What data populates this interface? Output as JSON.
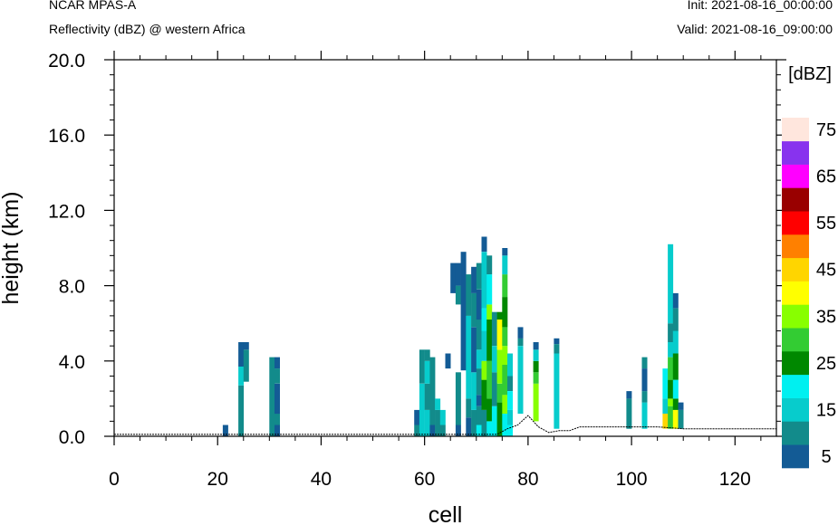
{
  "header": {
    "model": "NCAR MPAS-A",
    "subtitle": "Reflectivity (dBZ) @ western Africa",
    "init": "Init: 2021-08-16_00:00:00",
    "valid": "Valid: 2021-08-16_09:00:00"
  },
  "chart_data": {
    "type": "heatmap",
    "xlabel": "cell",
    "ylabel": "height (km)",
    "xlim": [
      0,
      128
    ],
    "ylim": [
      0,
      20
    ],
    "xticks": [
      "0",
      "20",
      "40",
      "60",
      "80",
      "100",
      "120"
    ],
    "yticks": [
      "0.0",
      "4.0",
      "8.0",
      "12.0",
      "16.0",
      "20.0"
    ],
    "colorbar": {
      "title": "[dBZ]",
      "labels": [
        "5",
        "15",
        "25",
        "35",
        "45",
        "55",
        "65",
        "75"
      ],
      "levels": [
        5,
        10,
        15,
        20,
        25,
        30,
        35,
        40,
        45,
        50,
        55,
        60,
        65,
        70,
        75
      ],
      "colors": [
        "#135b95",
        "#128b8b",
        "#07cccc",
        "#00f0f0",
        "#008800",
        "#33cc33",
        "#88ff00",
        "#ffff00",
        "#ffd500",
        "#ff8000",
        "#ff0000",
        "#990000",
        "#ff00ff",
        "#8833ee",
        "#ffe6dd"
      ]
    },
    "columns": [
      {
        "x": 21,
        "cells": [
          [
            0,
            0.6,
            5
          ]
        ]
      },
      {
        "x": 24,
        "cells": [
          [
            0,
            2.7,
            10
          ],
          [
            2.7,
            3.7,
            15
          ],
          [
            3.7,
            5.0,
            5
          ]
        ]
      },
      {
        "x": 25,
        "cells": [
          [
            2.9,
            4.6,
            10
          ],
          [
            4.6,
            5.0,
            5
          ]
        ]
      },
      {
        "x": 30,
        "cells": [
          [
            0,
            4.2,
            10
          ]
        ]
      },
      {
        "x": 31,
        "cells": [
          [
            0,
            0.6,
            5
          ],
          [
            0.6,
            1.2,
            10
          ],
          [
            1.2,
            2.8,
            5
          ],
          [
            2.8,
            3.6,
            10
          ],
          [
            3.6,
            4.2,
            5
          ]
        ]
      },
      {
        "x": 58,
        "cells": [
          [
            0,
            0.6,
            10
          ],
          [
            0.6,
            1.4,
            5
          ]
        ]
      },
      {
        "x": 59,
        "cells": [
          [
            0,
            2.8,
            15
          ],
          [
            2.8,
            4.6,
            10
          ]
        ]
      },
      {
        "x": 60,
        "cells": [
          [
            0,
            1.4,
            15
          ],
          [
            1.4,
            2.8,
            10
          ],
          [
            2.8,
            4.0,
            15
          ],
          [
            4.0,
            4.6,
            10
          ]
        ]
      },
      {
        "x": 61,
        "cells": [
          [
            0,
            0.6,
            5
          ],
          [
            0.6,
            4.2,
            10
          ]
        ]
      },
      {
        "x": 62,
        "cells": [
          [
            0,
            1.4,
            10
          ],
          [
            1.4,
            2.0,
            15
          ]
        ]
      },
      {
        "x": 63,
        "cells": [
          [
            0,
            0.6,
            10
          ],
          [
            0.6,
            1.4,
            15
          ]
        ]
      },
      {
        "x": 64,
        "cells": [
          [
            3.6,
            4.4,
            5
          ]
        ]
      },
      {
        "x": 65,
        "cells": [
          [
            7.6,
            9.2,
            5
          ]
        ]
      },
      {
        "x": 66,
        "cells": [
          [
            0,
            0.6,
            5
          ],
          [
            0.6,
            3.4,
            10
          ],
          [
            7.0,
            8.0,
            10
          ],
          [
            8.0,
            9.2,
            5
          ]
        ]
      },
      {
        "x": 67,
        "cells": [
          [
            3.5,
            9.8,
            5
          ]
        ]
      },
      {
        "x": 68,
        "cells": [
          [
            0,
            1.0,
            5
          ],
          [
            1.0,
            2.0,
            10
          ],
          [
            2.0,
            6.4,
            15
          ],
          [
            6.4,
            8.6,
            10
          ]
        ]
      },
      {
        "x": 69,
        "cells": [
          [
            0,
            1.4,
            10
          ],
          [
            1.4,
            3.4,
            15
          ],
          [
            3.4,
            5.8,
            5
          ],
          [
            5.8,
            7.6,
            10
          ],
          [
            7.6,
            9.0,
            5
          ]
        ]
      },
      {
        "x": 70,
        "cells": [
          [
            0,
            0.6,
            20
          ],
          [
            0.6,
            1.6,
            10
          ],
          [
            1.6,
            2.2,
            5
          ],
          [
            2.2,
            3.6,
            10
          ],
          [
            3.6,
            4.6,
            15
          ],
          [
            4.6,
            6.2,
            10
          ],
          [
            6.2,
            7.8,
            5
          ],
          [
            7.8,
            9.2,
            10
          ]
        ]
      },
      {
        "x": 71,
        "cells": [
          [
            0,
            1.4,
            10
          ],
          [
            1.4,
            3.0,
            25
          ],
          [
            3.0,
            4.0,
            35
          ],
          [
            4.0,
            5.6,
            15
          ],
          [
            5.6,
            6.8,
            20
          ],
          [
            6.8,
            9.8,
            15
          ],
          [
            9.8,
            10.6,
            5
          ]
        ]
      },
      {
        "x": 72,
        "cells": [
          [
            0,
            0.8,
            20
          ],
          [
            0.8,
            2.0,
            25
          ],
          [
            2.0,
            4.0,
            30
          ],
          [
            4.0,
            6.2,
            25
          ],
          [
            6.2,
            7.0,
            35
          ],
          [
            7.0,
            8.6,
            20
          ],
          [
            8.6,
            9.6,
            10
          ]
        ]
      },
      {
        "x": 73,
        "cells": [
          [
            0,
            1.6,
            20
          ],
          [
            1.6,
            3.4,
            10
          ],
          [
            3.4,
            4.8,
            15
          ],
          [
            4.8,
            6.6,
            10
          ]
        ]
      },
      {
        "x": 74,
        "cells": [
          [
            0,
            1.8,
            25
          ],
          [
            1.8,
            2.8,
            30
          ],
          [
            2.8,
            4.6,
            35
          ],
          [
            4.6,
            6.2,
            40
          ],
          [
            6.2,
            6.6,
            25
          ]
        ]
      },
      {
        "x": 75,
        "cells": [
          [
            0,
            1.2,
            20
          ],
          [
            1.2,
            2.2,
            35
          ],
          [
            2.2,
            3.8,
            30
          ],
          [
            3.8,
            4.8,
            35
          ],
          [
            4.8,
            5.8,
            30
          ],
          [
            5.8,
            7.4,
            25
          ],
          [
            7.4,
            8.6,
            30
          ],
          [
            8.6,
            9.6,
            15
          ],
          [
            9.6,
            10.0,
            5
          ]
        ]
      },
      {
        "x": 76,
        "cells": [
          [
            0,
            0.6,
            20
          ],
          [
            0.6,
            1.4,
            15
          ],
          [
            1.4,
            2.4,
            20
          ],
          [
            2.4,
            3.2,
            10
          ],
          [
            3.2,
            4.4,
            15
          ]
        ]
      },
      {
        "x": 78,
        "cells": [
          [
            1.2,
            4.8,
            15
          ],
          [
            4.8,
            5.2,
            10
          ],
          [
            5.2,
            5.8,
            5
          ]
        ]
      },
      {
        "x": 81,
        "cells": [
          [
            0.8,
            2.8,
            35
          ],
          [
            2.8,
            3.4,
            30
          ],
          [
            3.4,
            4.0,
            25
          ],
          [
            4.0,
            4.6,
            15
          ],
          [
            4.6,
            5.0,
            5
          ]
        ]
      },
      {
        "x": 85,
        "cells": [
          [
            0.4,
            4.4,
            15
          ],
          [
            4.4,
            4.9,
            10
          ],
          [
            4.9,
            5.2,
            5
          ]
        ]
      },
      {
        "x": 99,
        "cells": [
          [
            0.4,
            2.0,
            10
          ],
          [
            2.0,
            2.4,
            5
          ]
        ]
      },
      {
        "x": 102,
        "cells": [
          [
            0.4,
            1.8,
            15
          ],
          [
            1.8,
            2.4,
            10
          ],
          [
            2.4,
            3.6,
            5
          ],
          [
            3.6,
            4.2,
            10
          ]
        ]
      },
      {
        "x": 106,
        "cells": [
          [
            0.4,
            1.2,
            45
          ],
          [
            1.2,
            2.0,
            15
          ],
          [
            2.0,
            3.6,
            20
          ]
        ]
      },
      {
        "x": 107,
        "cells": [
          [
            0.4,
            1.6,
            30
          ],
          [
            1.6,
            2.0,
            35
          ],
          [
            2.0,
            3.0,
            25
          ],
          [
            3.0,
            4.2,
            30
          ],
          [
            4.2,
            5.0,
            15
          ],
          [
            5.0,
            6.0,
            10
          ],
          [
            6.0,
            10.2,
            15
          ]
        ]
      },
      {
        "x": 108,
        "cells": [
          [
            0.4,
            1.4,
            40
          ],
          [
            1.4,
            2.0,
            25
          ],
          [
            2.0,
            3.0,
            20
          ],
          [
            3.0,
            4.4,
            25
          ],
          [
            4.4,
            5.6,
            15
          ],
          [
            5.6,
            6.8,
            10
          ],
          [
            6.8,
            7.6,
            5
          ]
        ]
      },
      {
        "x": 109,
        "cells": [
          [
            0.4,
            1.4,
            10
          ],
          [
            1.4,
            1.8,
            5
          ]
        ]
      }
    ],
    "terrain": [
      [
        0,
        0.1
      ],
      [
        74,
        0.1
      ],
      [
        76,
        0.4
      ],
      [
        78,
        0.6
      ],
      [
        80,
        1.1
      ],
      [
        82,
        0.5
      ],
      [
        84,
        0.2
      ],
      [
        86,
        0.3
      ],
      [
        88,
        0.3
      ],
      [
        90,
        0.5
      ],
      [
        95,
        0.5
      ],
      [
        100,
        0.5
      ],
      [
        105,
        0.5
      ],
      [
        110,
        0.4
      ],
      [
        120,
        0.4
      ],
      [
        128,
        0.4
      ]
    ]
  }
}
